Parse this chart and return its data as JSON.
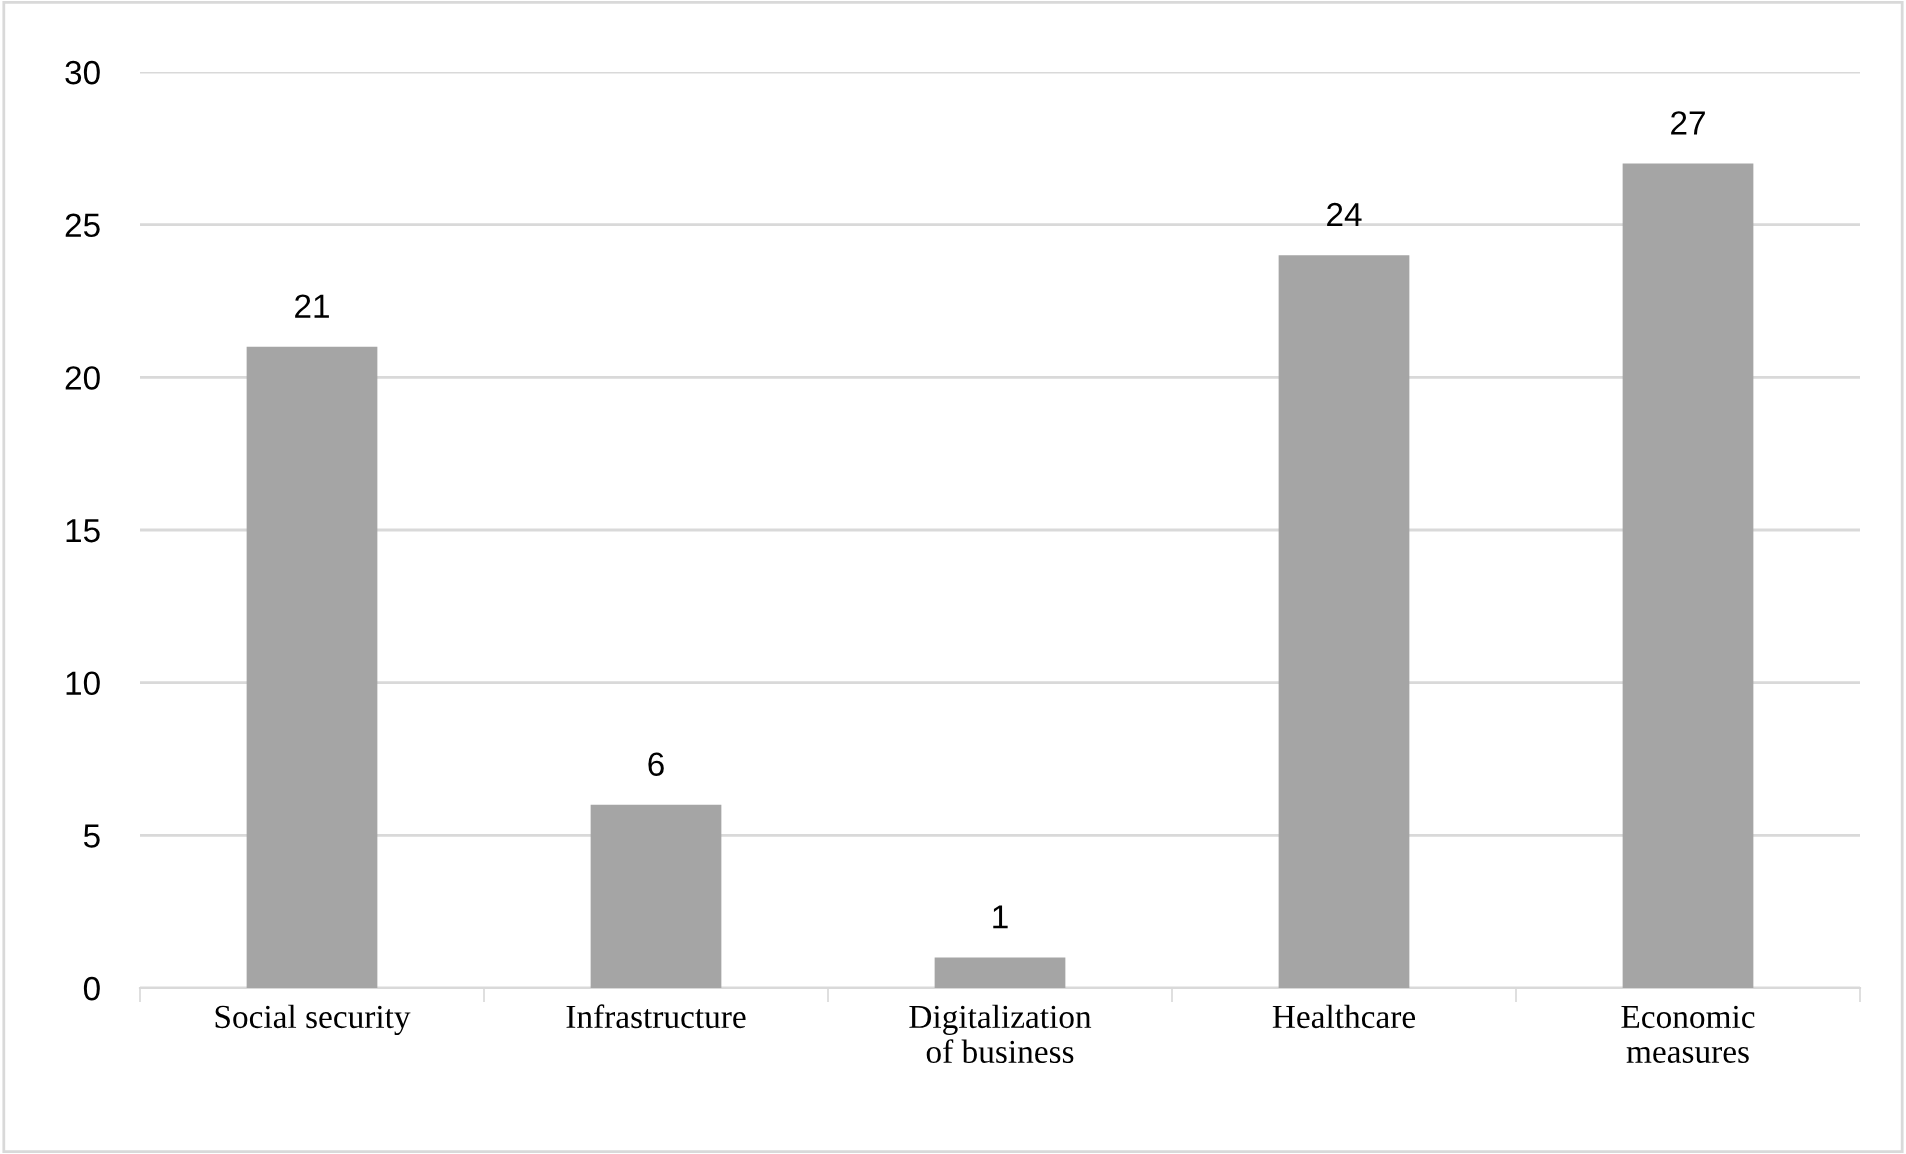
{
  "chart_data": {
    "type": "bar",
    "categories": [
      "Social security",
      "Infrastructure",
      "Digitalization of business",
      "Healthcare",
      "Economic measures"
    ],
    "values": [
      21,
      6,
      1,
      24,
      27
    ],
    "color": "#a5a5a5",
    "ylim": [
      0,
      30
    ],
    "yticks": [
      0,
      5,
      10,
      15,
      20,
      25,
      30
    ],
    "grid": "y",
    "data_labels": true
  }
}
